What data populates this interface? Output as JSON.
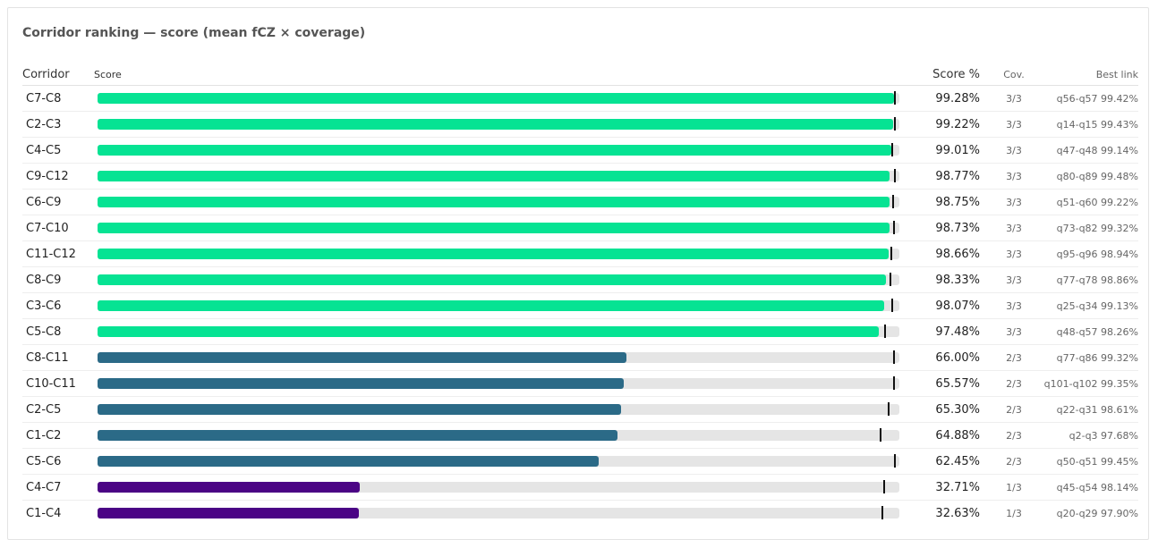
{
  "title": "Corridor ranking — score (mean fCZ × coverage)",
  "headers": {
    "corridor": "Corridor",
    "score": "Score",
    "pct": "Score %",
    "cov": "Cov.",
    "best": "Best link"
  },
  "colors": {
    "cov3": "#06e393",
    "cov2": "#2b6a87",
    "cov1": "#4b0485",
    "track": "#e5e5e5",
    "tick": "#111111"
  },
  "chart_data": {
    "type": "bar",
    "xlim": [
      0,
      100
    ],
    "rows": [
      {
        "corridor": "C7-C8",
        "score": 99.28,
        "score_label": "99.28%",
        "cov": "3/3",
        "coverage": 3,
        "best": "q56-q57 99.42%",
        "best_value": 99.42
      },
      {
        "corridor": "C2-C3",
        "score": 99.22,
        "score_label": "99.22%",
        "cov": "3/3",
        "coverage": 3,
        "best": "q14-q15 99.43%",
        "best_value": 99.43
      },
      {
        "corridor": "C4-C5",
        "score": 99.01,
        "score_label": "99.01%",
        "cov": "3/3",
        "coverage": 3,
        "best": "q47-q48 99.14%",
        "best_value": 99.14
      },
      {
        "corridor": "C9-C12",
        "score": 98.77,
        "score_label": "98.77%",
        "cov": "3/3",
        "coverage": 3,
        "best": "q80-q89 99.48%",
        "best_value": 99.48
      },
      {
        "corridor": "C6-C9",
        "score": 98.75,
        "score_label": "98.75%",
        "cov": "3/3",
        "coverage": 3,
        "best": "q51-q60 99.22%",
        "best_value": 99.22
      },
      {
        "corridor": "C7-C10",
        "score": 98.73,
        "score_label": "98.73%",
        "cov": "3/3",
        "coverage": 3,
        "best": "q73-q82 99.32%",
        "best_value": 99.32
      },
      {
        "corridor": "C11-C12",
        "score": 98.66,
        "score_label": "98.66%",
        "cov": "3/3",
        "coverage": 3,
        "best": "q95-q96 98.94%",
        "best_value": 98.94
      },
      {
        "corridor": "C8-C9",
        "score": 98.33,
        "score_label": "98.33%",
        "cov": "3/3",
        "coverage": 3,
        "best": "q77-q78 98.86%",
        "best_value": 98.86
      },
      {
        "corridor": "C3-C6",
        "score": 98.07,
        "score_label": "98.07%",
        "cov": "3/3",
        "coverage": 3,
        "best": "q25-q34 99.13%",
        "best_value": 99.13
      },
      {
        "corridor": "C5-C8",
        "score": 97.48,
        "score_label": "97.48%",
        "cov": "3/3",
        "coverage": 3,
        "best": "q48-q57 98.26%",
        "best_value": 98.26
      },
      {
        "corridor": "C8-C11",
        "score": 66.0,
        "score_label": "66.00%",
        "cov": "2/3",
        "coverage": 2,
        "best": "q77-q86 99.32%",
        "best_value": 99.32
      },
      {
        "corridor": "C10-C11",
        "score": 65.57,
        "score_label": "65.57%",
        "cov": "2/3",
        "coverage": 2,
        "best": "q101-q102 99.35%",
        "best_value": 99.35
      },
      {
        "corridor": "C2-C5",
        "score": 65.3,
        "score_label": "65.30%",
        "cov": "2/3",
        "coverage": 2,
        "best": "q22-q31 98.61%",
        "best_value": 98.61
      },
      {
        "corridor": "C1-C2",
        "score": 64.88,
        "score_label": "64.88%",
        "cov": "2/3",
        "coverage": 2,
        "best": "q2-q3 97.68%",
        "best_value": 97.68
      },
      {
        "corridor": "C5-C6",
        "score": 62.45,
        "score_label": "62.45%",
        "cov": "2/3",
        "coverage": 2,
        "best": "q50-q51 99.45%",
        "best_value": 99.45
      },
      {
        "corridor": "C4-C7",
        "score": 32.71,
        "score_label": "32.71%",
        "cov": "1/3",
        "coverage": 1,
        "best": "q45-q54 98.14%",
        "best_value": 98.14
      },
      {
        "corridor": "C1-C4",
        "score": 32.63,
        "score_label": "32.63%",
        "cov": "1/3",
        "coverage": 1,
        "best": "q20-q29 97.90%",
        "best_value": 97.9
      }
    ]
  }
}
